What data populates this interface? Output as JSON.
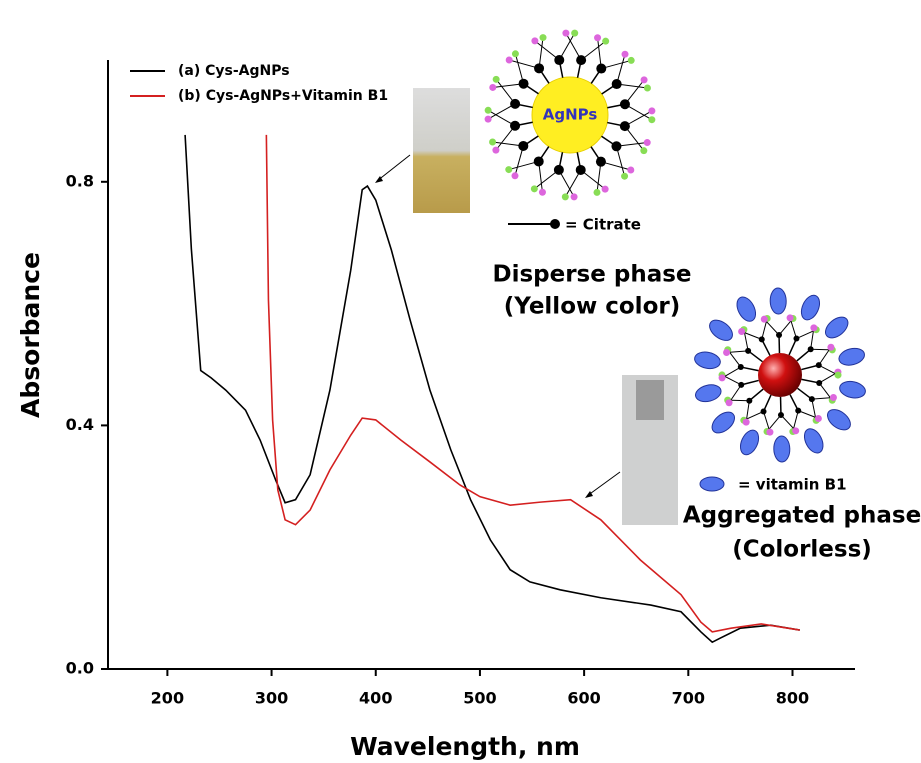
{
  "chart_data": {
    "type": "line",
    "x_label": "Wavelength, nm",
    "y_label": "Absorbance",
    "xlim": [
      143,
      860
    ],
    "ylim": [
      0,
      1.0
    ],
    "xticks": [
      200,
      300,
      400,
      500,
      600,
      700,
      800
    ],
    "yticks": [
      {
        "value": 0,
        "label": "0.0"
      },
      {
        "value": 0.4,
        "label": "0.4"
      },
      {
        "value": 0.8,
        "label": "0.8"
      }
    ],
    "series": [
      {
        "name": "(a) Cys-AgNPs",
        "color": "#000000",
        "x": [
          217,
          223,
          232,
          242,
          256,
          275,
          289,
          304,
          313,
          323,
          337,
          356,
          376,
          387,
          392,
          400,
          415,
          433,
          452,
          472,
          491,
          510,
          529,
          548,
          577,
          616,
          664,
          693,
          712,
          723,
          731,
          750,
          779,
          807
        ],
        "values": [
          0.877,
          0.69,
          0.49,
          0.478,
          0.458,
          0.425,
          0.376,
          0.31,
          0.273,
          0.278,
          0.319,
          0.458,
          0.655,
          0.787,
          0.793,
          0.77,
          0.688,
          0.573,
          0.458,
          0.36,
          0.278,
          0.212,
          0.163,
          0.143,
          0.13,
          0.117,
          0.105,
          0.094,
          0.061,
          0.044,
          0.051,
          0.067,
          0.072,
          0.064
        ]
      },
      {
        "name": "(b) Cys-AgNPs+Vitamin B1",
        "color": "#d42020",
        "x": [
          295,
          297,
          301,
          306,
          313,
          323,
          337,
          356,
          376,
          387,
          400,
          424,
          452,
          481,
          500,
          529,
          558,
          587,
          616,
          654,
          693,
          712,
          723,
          741,
          770,
          807
        ],
        "values": [
          0.877,
          0.606,
          0.409,
          0.294,
          0.245,
          0.237,
          0.261,
          0.327,
          0.384,
          0.412,
          0.409,
          0.376,
          0.34,
          0.302,
          0.283,
          0.269,
          0.274,
          0.278,
          0.245,
          0.179,
          0.122,
          0.077,
          0.061,
          0.067,
          0.074,
          0.064
        ]
      }
    ],
    "annotations": [
      "AgNPs",
      "= Citrate",
      "Disperse phase",
      "(Yellow color)",
      "= vitamin B1",
      "Aggregated phase",
      "(Colorless)"
    ]
  }
}
